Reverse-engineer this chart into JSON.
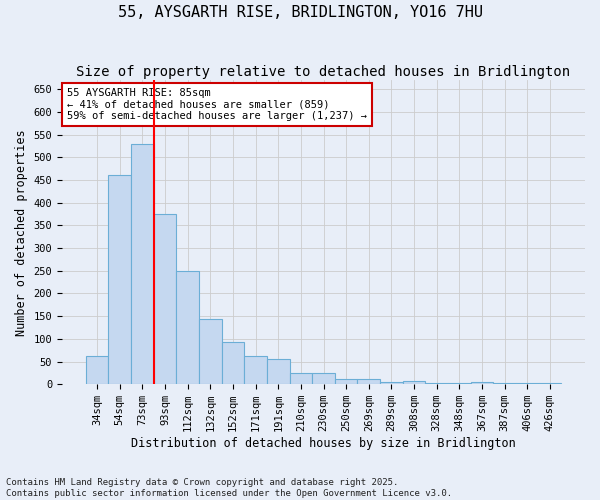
{
  "title": "55, AYSGARTH RISE, BRIDLINGTON, YO16 7HU",
  "subtitle": "Size of property relative to detached houses in Bridlington",
  "xlabel": "Distribution of detached houses by size in Bridlington",
  "ylabel": "Number of detached properties",
  "categories": [
    "34sqm",
    "54sqm",
    "73sqm",
    "93sqm",
    "112sqm",
    "132sqm",
    "152sqm",
    "171sqm",
    "191sqm",
    "210sqm",
    "230sqm",
    "250sqm",
    "269sqm",
    "289sqm",
    "308sqm",
    "328sqm",
    "348sqm",
    "367sqm",
    "387sqm",
    "406sqm",
    "426sqm"
  ],
  "values": [
    62,
    462,
    530,
    375,
    250,
    143,
    92,
    62,
    55,
    25,
    25,
    11,
    11,
    5,
    8,
    3,
    3,
    5,
    3,
    3,
    2
  ],
  "bar_color": "#c5d8f0",
  "bar_edge_color": "#6baed6",
  "red_line_x": 2.5,
  "annotation_text": "55 AYSGARTH RISE: 85sqm\n← 41% of detached houses are smaller (859)\n59% of semi-detached houses are larger (1,237) →",
  "annotation_box_color": "#ffffff",
  "annotation_box_edge": "#cc0000",
  "ylim": [
    0,
    670
  ],
  "yticks": [
    0,
    50,
    100,
    150,
    200,
    250,
    300,
    350,
    400,
    450,
    500,
    550,
    600,
    650
  ],
  "grid_color": "#cccccc",
  "bg_color": "#e8eef8",
  "footer": "Contains HM Land Registry data © Crown copyright and database right 2025.\nContains public sector information licensed under the Open Government Licence v3.0.",
  "title_fontsize": 11,
  "subtitle_fontsize": 10,
  "axis_label_fontsize": 8.5,
  "tick_fontsize": 7.5,
  "footer_fontsize": 6.5
}
